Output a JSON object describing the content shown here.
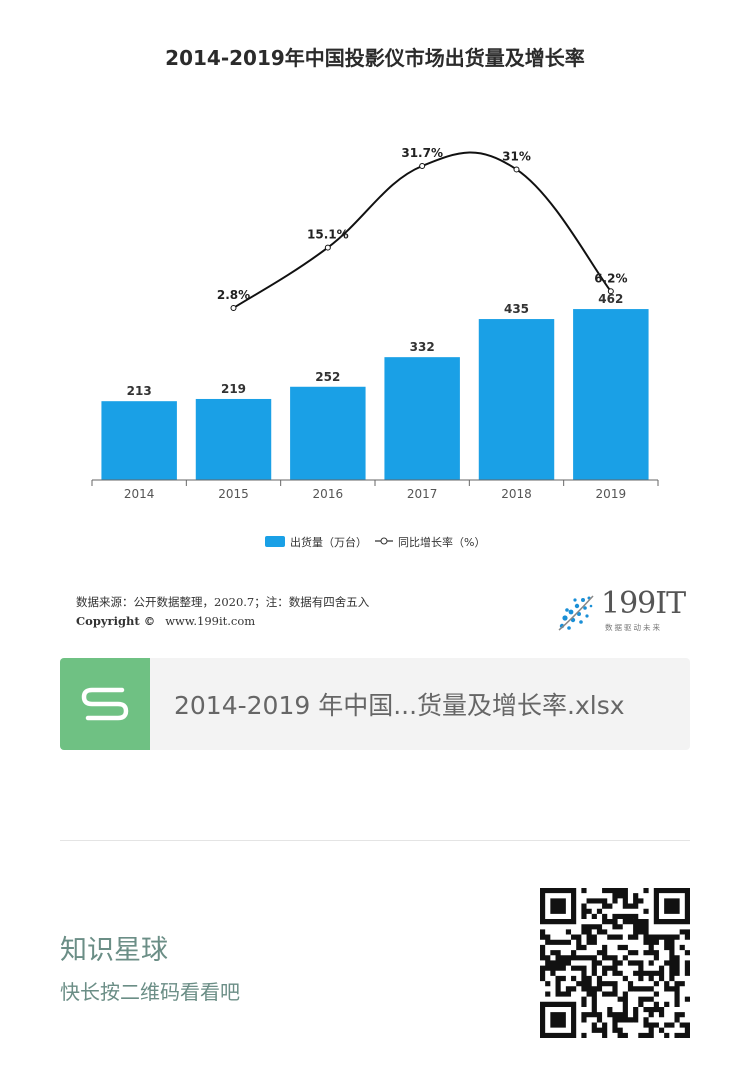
{
  "chart_data": {
    "type": "bar+line",
    "title": "2014-2019年中国投影仪市场出货量及增长率",
    "categories": [
      "2014",
      "2015",
      "2016",
      "2017",
      "2018",
      "2019"
    ],
    "series": [
      {
        "name": "出货量（万台）",
        "type": "bar",
        "values": [
          213,
          219,
          252,
          332,
          435,
          462
        ],
        "labels": [
          "213",
          "219",
          "252",
          "332",
          "435",
          "462"
        ],
        "color": "#1aa0e6"
      },
      {
        "name": "同比增长率（%）",
        "type": "line",
        "values": [
          null,
          2.8,
          15.1,
          31.7,
          31,
          6.2
        ],
        "labels": [
          "",
          "2.8%",
          "15.1%",
          "31.7%",
          "31%",
          "6.2%"
        ],
        "color": "#111111"
      }
    ],
    "ylim": [
      0,
      500
    ],
    "y2lim": [
      0,
      32
    ],
    "legend": "bottom-center"
  },
  "footer": {
    "source": "数据来源：公开数据整理，2020.7；注：数据有四舍五入",
    "copyright": "Copyright ©",
    "site": "www.199it.com",
    "logo_text": "199IT",
    "logo_sub": "数据驱动未来"
  },
  "file": {
    "name": "2014-2019 年中国...货量及增长率.xlsx",
    "icon": "spreadsheet-s-icon",
    "color": "#6fc183"
  },
  "planet": {
    "title": "知识星球",
    "subtitle": "快长按二维码看看吧"
  },
  "qr": {
    "icon": "qr-code"
  }
}
